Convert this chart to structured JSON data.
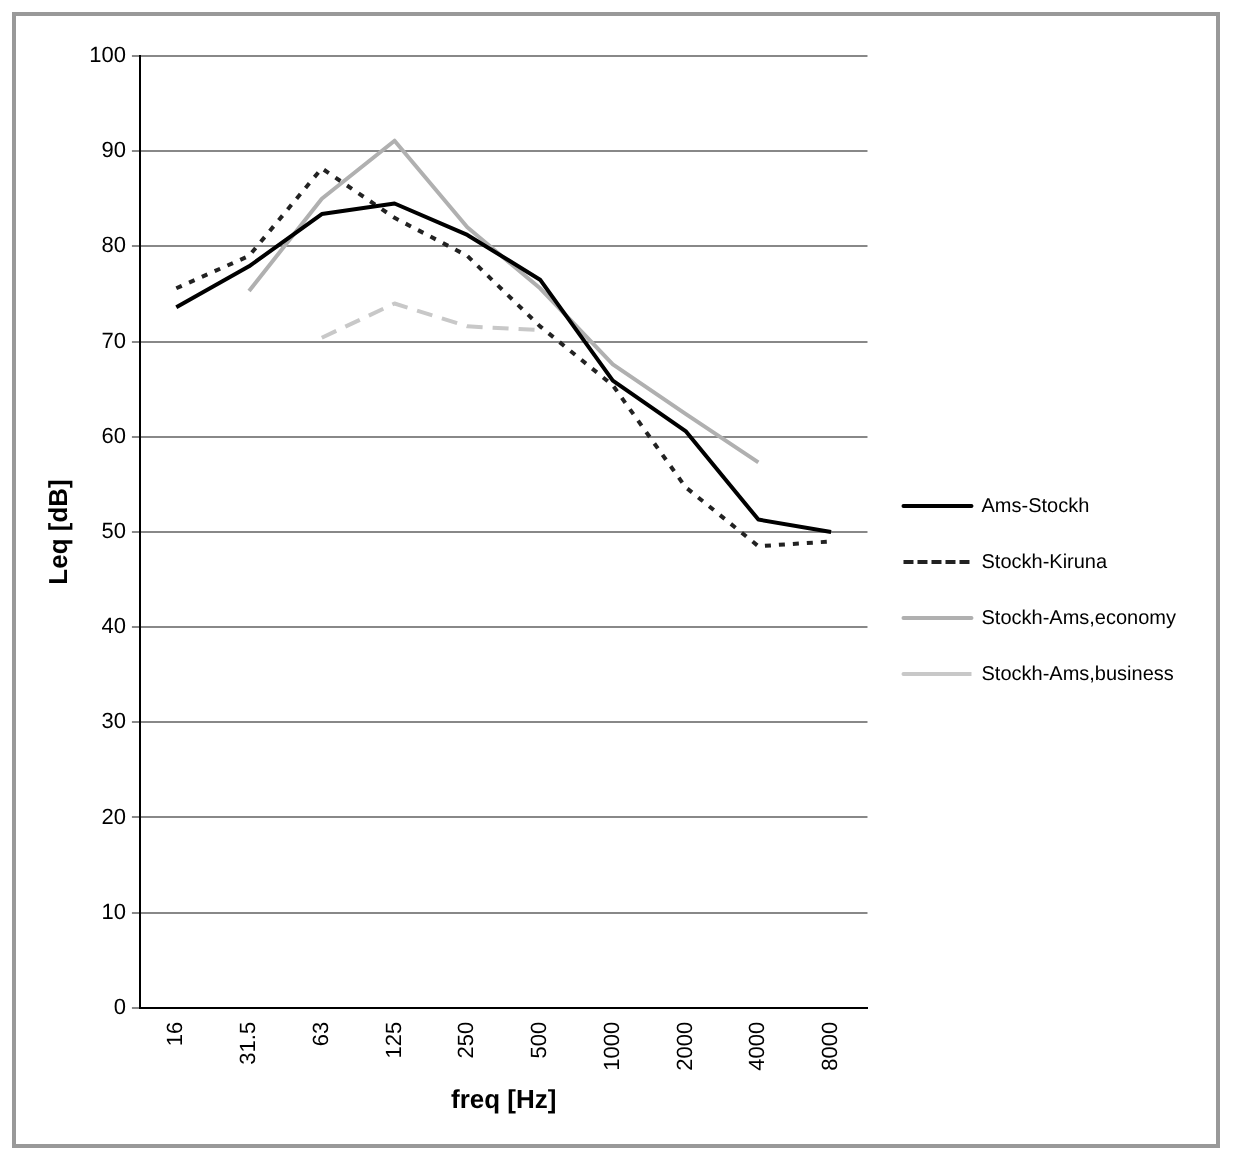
{
  "chart_data": {
    "type": "line",
    "xlabel": "freq [Hz]",
    "ylabel": "Leq [dB]",
    "categories": [
      "16",
      "31.5",
      "63",
      "125",
      "250",
      "500",
      "1000",
      "2000",
      "4000",
      "8000"
    ],
    "ylim": [
      0,
      100
    ],
    "yticks": [
      0,
      10,
      20,
      30,
      40,
      50,
      60,
      70,
      80,
      90,
      100
    ],
    "grid": "y",
    "legend": "right",
    "marker": "none",
    "series": [
      {
        "name": "Ams-Stockh",
        "color": "#000000",
        "line_style": "solid",
        "values": [
          73.6,
          77.9,
          83.4,
          84.5,
          81.2,
          76.5,
          65.9,
          60.6,
          51.3,
          50
        ]
      },
      {
        "name": "Stockh-Kiruna",
        "color": "#222222",
        "line_style": "dotted",
        "values": [
          75.6,
          79,
          88.2,
          83,
          79,
          71.6,
          65.4,
          54.7,
          48.5,
          49
        ]
      },
      {
        "name": "Stockh-Ams,economy",
        "color": "#b0b0b0",
        "line_style": "solid",
        "values": [
          null,
          75.3,
          85,
          91.1,
          82,
          75.6,
          67.6,
          62.4,
          57.3,
          null
        ]
      },
      {
        "name": "Stockh-Ams,business",
        "color": "#c8c8c8",
        "line_style": "dashed",
        "values": [
          null,
          null,
          70.4,
          74,
          71.6,
          71.2,
          null,
          null,
          null,
          null
        ]
      }
    ]
  }
}
